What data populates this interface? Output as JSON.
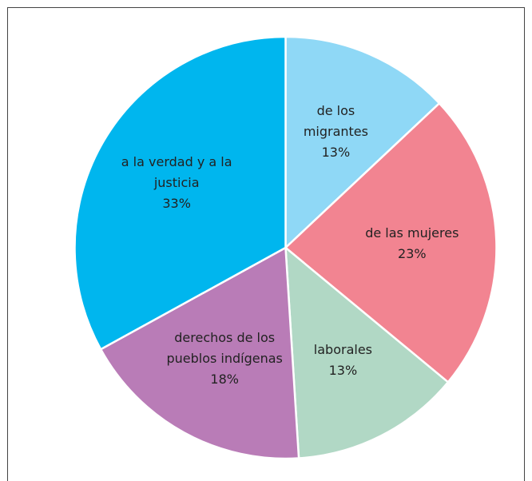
{
  "chart_data": {
    "type": "pie",
    "categories": [
      "de los\nmigrantes",
      "de las mujeres",
      "laborales",
      "derechos de los\npueblos indígenas",
      "a la verdad y a la\njusticia"
    ],
    "values": [
      13,
      23,
      13,
      18,
      33
    ],
    "value_labels": [
      "13%",
      "23%",
      "13%",
      "18%",
      "33%"
    ],
    "colors": [
      "#8fd8f6",
      "#f28491",
      "#b1d8c5",
      "#b97cb7",
      "#00b6ee"
    ]
  }
}
